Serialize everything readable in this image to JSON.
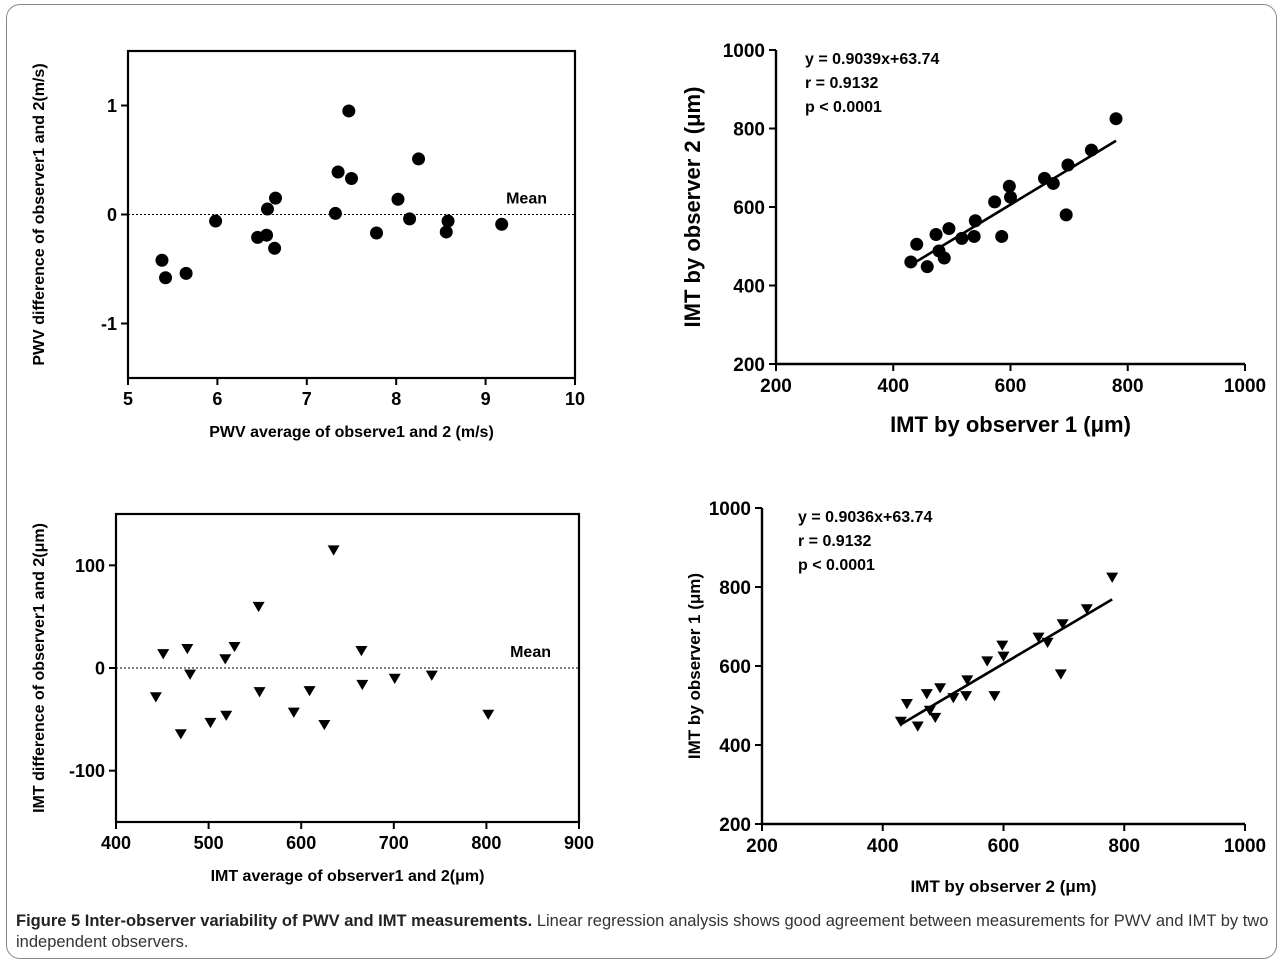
{
  "figure": {
    "caption_title": "Figure 5 Inter-observer variability of PWV and IMT measurements.",
    "caption_text": " Linear regression analysis shows good agreement between measurements for PWV and IMT by two independent observers."
  },
  "chart_data": [
    {
      "id": "pwv-bland-altman",
      "type": "scatter",
      "xlabel": "PWV average of observe1 and 2 (m/s)",
      "ylabel": "PWV difference of observer1 and 2(m/s)",
      "xlim": [
        5,
        10
      ],
      "ylim": [
        -1.5,
        1.5
      ],
      "xticks": [
        5,
        6,
        7,
        8,
        9,
        10
      ],
      "yticks": [
        -1,
        0,
        1
      ],
      "marker": "circle",
      "mean_line": 0,
      "mean_label": "Mean",
      "points": [
        [
          5.38,
          -0.42
        ],
        [
          5.42,
          -0.58
        ],
        [
          5.65,
          -0.54
        ],
        [
          5.98,
          -0.06
        ],
        [
          6.45,
          -0.21
        ],
        [
          6.55,
          -0.19
        ],
        [
          6.56,
          0.05
        ],
        [
          6.64,
          -0.31
        ],
        [
          6.65,
          0.15
        ],
        [
          7.32,
          0.01
        ],
        [
          7.35,
          0.39
        ],
        [
          7.47,
          0.95
        ],
        [
          7.5,
          0.33
        ],
        [
          7.78,
          -0.17
        ],
        [
          8.02,
          0.14
        ],
        [
          8.15,
          -0.04
        ],
        [
          8.25,
          0.51
        ],
        [
          8.56,
          -0.16
        ],
        [
          8.58,
          -0.06
        ],
        [
          9.18,
          -0.09
        ]
      ]
    },
    {
      "id": "imt-regression-observer",
      "type": "scatter",
      "xlabel": "IMT by observer 1 (μm)",
      "ylabel": "IMT by observer 2 (μm)",
      "xlim": [
        200,
        1000
      ],
      "ylim": [
        200,
        1000
      ],
      "xticks": [
        200,
        400,
        600,
        800,
        1000
      ],
      "yticks": [
        200,
        400,
        600,
        800,
        1000
      ],
      "marker": "circle",
      "annotations": [
        "y = 0.9039x+63.74",
        "r = 0.9132",
        "p < 0.0001"
      ],
      "fit": {
        "slope": 0.9039,
        "intercept": 63.74,
        "x_range": [
          430,
          780
        ]
      },
      "points": [
        [
          430,
          460
        ],
        [
          440,
          505
        ],
        [
          458,
          448
        ],
        [
          473,
          530
        ],
        [
          478,
          488
        ],
        [
          487,
          470
        ],
        [
          495,
          545
        ],
        [
          517,
          520
        ],
        [
          538,
          525
        ],
        [
          540,
          565
        ],
        [
          573,
          613
        ],
        [
          585,
          525
        ],
        [
          598,
          653
        ],
        [
          600,
          625
        ],
        [
          658,
          673
        ],
        [
          673,
          660
        ],
        [
          695,
          580
        ],
        [
          698,
          707
        ],
        [
          738,
          745
        ],
        [
          780,
          825
        ]
      ]
    },
    {
      "id": "imt-bland-altman",
      "type": "scatter",
      "xlabel": "IMT average of observer1 and 2(μm)",
      "ylabel": "IMT difference of observer1 and 2(μm)",
      "xlim": [
        400,
        900
      ],
      "ylim": [
        -150,
        150
      ],
      "xticks": [
        400,
        500,
        600,
        700,
        800,
        900
      ],
      "yticks": [
        -100,
        0,
        100
      ],
      "marker": "triangle-down",
      "mean_line": 0,
      "mean_label": "Mean",
      "points": [
        [
          443,
          -28
        ],
        [
          451,
          14
        ],
        [
          470,
          -64
        ],
        [
          477,
          19
        ],
        [
          480,
          -6
        ],
        [
          502,
          -53
        ],
        [
          518,
          9
        ],
        [
          519,
          -46
        ],
        [
          528,
          21
        ],
        [
          554,
          60
        ],
        [
          555,
          -23
        ],
        [
          592,
          -43
        ],
        [
          609,
          -22
        ],
        [
          625,
          -55
        ],
        [
          635,
          115
        ],
        [
          665,
          17
        ],
        [
          666,
          -16
        ],
        [
          701,
          -10
        ],
        [
          741,
          -7
        ],
        [
          802,
          -45
        ]
      ]
    },
    {
      "id": "imt-regression-observer-reverse",
      "type": "scatter",
      "xlabel": "IMT by observer 2 (μm)",
      "ylabel": "IMT by observer 1 (μm)",
      "xlim": [
        200,
        1000
      ],
      "ylim": [
        200,
        1000
      ],
      "xticks": [
        200,
        400,
        600,
        800,
        1000
      ],
      "yticks": [
        200,
        400,
        600,
        800,
        1000
      ],
      "marker": "triangle-down",
      "annotations": [
        "y = 0.9036x+63.74",
        "r = 0.9132",
        "p < 0.0001"
      ],
      "fit": {
        "slope": 0.9036,
        "intercept": 63.74,
        "x_range": [
          430,
          780
        ]
      },
      "points": [
        [
          430,
          460
        ],
        [
          440,
          505
        ],
        [
          458,
          448
        ],
        [
          473,
          530
        ],
        [
          478,
          488
        ],
        [
          487,
          470
        ],
        [
          495,
          545
        ],
        [
          517,
          520
        ],
        [
          538,
          525
        ],
        [
          540,
          565
        ],
        [
          573,
          613
        ],
        [
          585,
          525
        ],
        [
          598,
          653
        ],
        [
          600,
          625
        ],
        [
          658,
          673
        ],
        [
          673,
          660
        ],
        [
          695,
          580
        ],
        [
          698,
          707
        ],
        [
          738,
          745
        ],
        [
          780,
          825
        ]
      ]
    }
  ]
}
